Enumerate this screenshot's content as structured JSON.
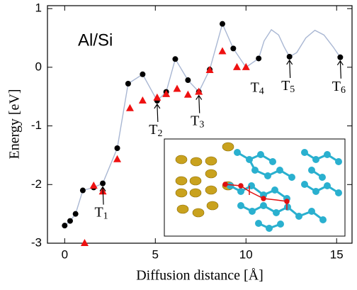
{
  "chart_data": {
    "type": "line",
    "annotation_text": "Al/Si",
    "xlabel": "Diffusion distance [Å]",
    "ylabel": "Energy [eV]",
    "xlim": [
      -0.95,
      15.85
    ],
    "ylim": [
      -3,
      1.05
    ],
    "xticks": [
      0,
      5,
      10,
      15
    ],
    "yticks": [
      -3,
      -2,
      -1,
      0,
      1
    ],
    "series": [
      {
        "color": "#a9b7d3",
        "marker": "none",
        "x": [
          0,
          0.3,
          0.6,
          1.0,
          1.6,
          2.1,
          2.9,
          3.5,
          4.3,
          5.1,
          5.6,
          6.1,
          6.8,
          7.4,
          8.0,
          8.7,
          9.3,
          10.0,
          10.7,
          11.0,
          11.4,
          11.8,
          12.1,
          12.4,
          12.8,
          13.3,
          13.8,
          14.3,
          14.8,
          15.2
        ],
        "values": [
          -2.7,
          -2.62,
          -2.5,
          -2.1,
          -2.05,
          -1.98,
          -1.38,
          -0.28,
          -0.12,
          -0.57,
          -0.42,
          0.14,
          -0.22,
          -0.42,
          -0.04,
          0.74,
          0.32,
          0.0,
          0.15,
          0.45,
          0.64,
          0.55,
          0.35,
          0.18,
          0.25,
          0.5,
          0.63,
          0.55,
          0.35,
          0.17
        ]
      },
      {
        "color": "#000000",
        "marker": "circle",
        "x": [
          0,
          0.3,
          0.6,
          1.0,
          1.6,
          2.1,
          2.9,
          3.5,
          4.3,
          5.1,
          5.6,
          6.1,
          6.8,
          7.4,
          8.0,
          8.7,
          9.3,
          10.7,
          12.4,
          15.2
        ],
        "values": [
          -2.7,
          -2.62,
          -2.5,
          -2.1,
          -2.05,
          -1.98,
          -1.38,
          -0.28,
          -0.12,
          -0.57,
          -0.42,
          0.14,
          -0.22,
          -0.42,
          -0.04,
          0.74,
          0.32,
          0.15,
          0.18,
          0.17
        ]
      },
      {
        "color": "#ee1111",
        "marker": "triangle",
        "x": [
          1.1,
          1.6,
          2.1,
          2.9,
          3.6,
          4.3,
          5.1,
          5.6,
          6.2,
          6.8,
          7.4,
          8.0,
          8.7,
          9.5,
          10.0
        ],
        "values": [
          -3.0,
          -2.02,
          -2.12,
          -1.57,
          -0.7,
          -0.57,
          -0.52,
          -0.46,
          -0.37,
          -0.47,
          -0.42,
          -0.05,
          0.27,
          0.0,
          0.0
        ]
      }
    ],
    "annotations": [
      {
        "label": "T",
        "sub": "1",
        "point": 5,
        "arrow": true
      },
      {
        "label": "T",
        "sub": "2",
        "point": 9,
        "arrow": true
      },
      {
        "label": "T",
        "sub": "3",
        "point": 13,
        "arrow": true
      },
      {
        "label": "T",
        "sub": "4",
        "point": 17,
        "arrow": false
      },
      {
        "label": "T",
        "sub": "5",
        "point": 18,
        "arrow": true
      },
      {
        "label": "T",
        "sub": "6",
        "point": 19,
        "arrow": true
      }
    ]
  }
}
